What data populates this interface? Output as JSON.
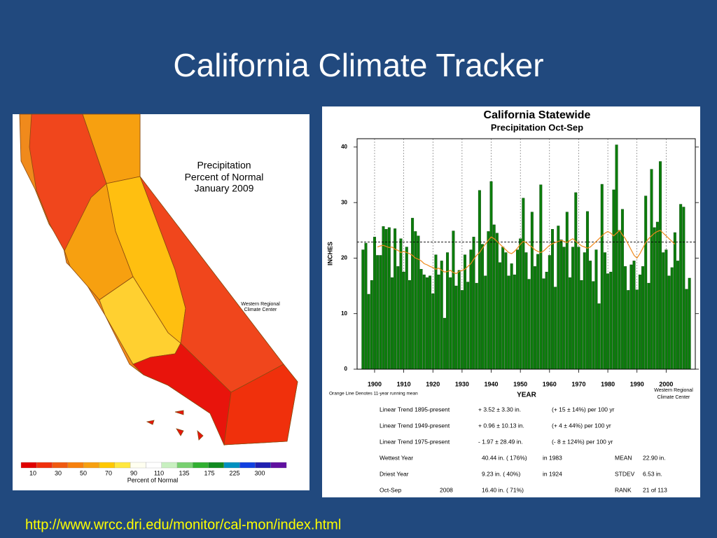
{
  "title": "California Climate Tracker",
  "url": "http://www.wrcc.dri.edu/monitor/cal-mon/index.html",
  "map": {
    "title": [
      "Precipitation",
      "Percent of Normal",
      "January 2009"
    ],
    "credit": [
      "Western Regional",
      "Climate Center"
    ],
    "legend": {
      "labels": [
        "10",
        "30",
        "50",
        "70",
        "90",
        "110",
        "135",
        "175",
        "225",
        "300"
      ],
      "caption": "Percent of Normal"
    }
  },
  "chart_data": {
    "type": "bar",
    "title": "California Statewide",
    "subtitle": "Precipitation  Oct-Sep",
    "x_label": "YEAR",
    "y_label": "INCHES",
    "note": "Orange Line Denotes 11-year running mean",
    "credit": [
      "Western Regional",
      "Climate Center"
    ],
    "color": "#0b7d0b",
    "line_color": "#f08a1c",
    "mean": 22.9,
    "x": [
      1896,
      1897,
      1898,
      1899,
      1900,
      1901,
      1902,
      1903,
      1904,
      1905,
      1906,
      1907,
      1908,
      1909,
      1910,
      1911,
      1912,
      1913,
      1914,
      1915,
      1916,
      1917,
      1918,
      1919,
      1920,
      1921,
      1922,
      1923,
      1924,
      1925,
      1926,
      1927,
      1928,
      1929,
      1930,
      1931,
      1932,
      1933,
      1934,
      1935,
      1936,
      1937,
      1938,
      1939,
      1940,
      1941,
      1942,
      1943,
      1944,
      1945,
      1946,
      1947,
      1948,
      1949,
      1950,
      1951,
      1952,
      1953,
      1954,
      1955,
      1956,
      1957,
      1958,
      1959,
      1960,
      1961,
      1962,
      1963,
      1964,
      1965,
      1966,
      1967,
      1968,
      1969,
      1970,
      1971,
      1972,
      1973,
      1974,
      1975,
      1976,
      1977,
      1978,
      1979,
      1980,
      1981,
      1982,
      1983,
      1984,
      1985,
      1986,
      1987,
      1988,
      1989,
      1990,
      1991,
      1992,
      1993,
      1994,
      1995,
      1996,
      1997,
      1998,
      1999,
      2000,
      2001,
      2002,
      2003,
      2004,
      2005,
      2006,
      2007,
      2008
    ],
    "values": [
      21.5,
      22.7,
      13.5,
      16.0,
      23.8,
      20.5,
      20.5,
      25.7,
      25.2,
      25.5,
      16.5,
      25.3,
      18.5,
      23.5,
      17.5,
      22.0,
      16.0,
      27.2,
      24.8,
      24.0,
      18.0,
      17.0,
      16.5,
      16.8,
      13.6,
      20.6,
      17.0,
      19.5,
      9.2,
      21.0,
      16.5,
      24.9,
      15.0,
      17.8,
      14.2,
      20.6,
      15.7,
      21.5,
      23.8,
      15.5,
      32.2,
      22.5,
      16.8,
      24.8,
      33.8,
      26.0,
      24.5,
      19.2,
      22.0,
      21.0,
      16.8,
      19.0,
      17.0,
      21.5,
      23.5,
      30.8,
      21.0,
      16.2,
      28.3,
      18.5,
      20.7,
      33.2,
      16.3,
      17.5,
      20.5,
      25.2,
      14.8,
      25.8,
      23.3,
      22.0,
      28.3,
      16.5,
      22.0,
      31.8,
      22.0,
      16.0,
      21.0,
      28.4,
      19.5,
      15.8,
      21.5,
      11.8,
      33.3,
      21.0,
      17.2,
      17.5,
      32.3,
      40.4,
      25.0,
      28.8,
      18.5,
      14.2,
      18.8,
      19.5,
      14.3,
      17.0,
      18.5,
      31.2,
      15.5,
      36.0,
      25.5,
      26.5,
      37.4,
      21.0,
      21.5,
      16.8,
      18.3,
      24.6,
      19.5,
      29.7,
      29.2,
      14.4,
      16.4
    ],
    "running_mean": [
      null,
      null,
      null,
      null,
      null,
      22.0,
      22.2,
      22.3,
      22.1,
      21.9,
      22.0,
      21.6,
      21.4,
      21.0,
      21.2,
      21.0,
      20.8,
      20.5,
      20.0,
      19.8,
      19.5,
      19.0,
      18.8,
      18.5,
      18.3,
      18.0,
      18.2,
      17.8,
      17.5,
      17.6,
      17.8,
      17.4,
      17.2,
      17.6,
      17.8,
      18.0,
      18.5,
      19.0,
      19.8,
      20.5,
      21.0,
      21.8,
      22.5,
      23.2,
      23.8,
      23.5,
      23.0,
      22.5,
      22.0,
      21.5,
      21.0,
      20.8,
      21.2,
      21.8,
      22.5,
      23.0,
      22.8,
      22.3,
      22.0,
      21.5,
      21.2,
      21.0,
      21.3,
      21.8,
      22.3,
      22.6,
      22.8,
      23.0,
      23.2,
      23.0,
      22.8,
      23.2,
      23.5,
      23.0,
      22.6,
      22.2,
      22.0,
      21.8,
      22.0,
      22.5,
      23.0,
      23.5,
      24.0,
      24.5,
      24.8,
      24.5,
      24.0,
      24.5,
      25.0,
      24.2,
      23.5,
      22.5,
      21.5,
      20.5,
      20.0,
      20.8,
      21.8,
      22.8,
      23.5,
      24.0,
      24.5,
      24.8,
      25.0,
      24.5,
      24.0,
      23.5,
      23.0,
      22.5,
      null,
      null,
      null,
      null,
      null
    ],
    "xlim": [
      1894,
      2010
    ],
    "ylim": [
      0,
      41.5
    ],
    "xticks": [
      1900,
      1910,
      1920,
      1930,
      1940,
      1950,
      1960,
      1970,
      1980,
      1990,
      2000
    ],
    "yticks": [
      0,
      10,
      20,
      30,
      40
    ],
    "stats": [
      [
        "Linear Trend 1895-present",
        "+ 3.52 ± 3.30 in.",
        "(+ 15 ± 14%) per 100 yr"
      ],
      [
        "Linear Trend 1949-present",
        "+ 0.96 ± 10.13 in.",
        "(+ 4 ± 44%) per 100 yr"
      ],
      [
        "Linear Trend 1975-present",
        "- 1.97 ± 28.49 in.",
        "(- 8 ± 124%) per 100 yr"
      ],
      [
        "Wettest Year",
        "40.44 in. ( 176%)",
        "in 1983",
        "MEAN",
        "22.90 in."
      ],
      [
        "Driest Year",
        "9.23 in. ( 40%)",
        "in 1924",
        "STDEV",
        "6.53 in."
      ],
      [
        "Oct-Sep",
        "2008",
        "16.40 in. ( 71%)",
        "RANK",
        "21 of 113"
      ]
    ]
  }
}
